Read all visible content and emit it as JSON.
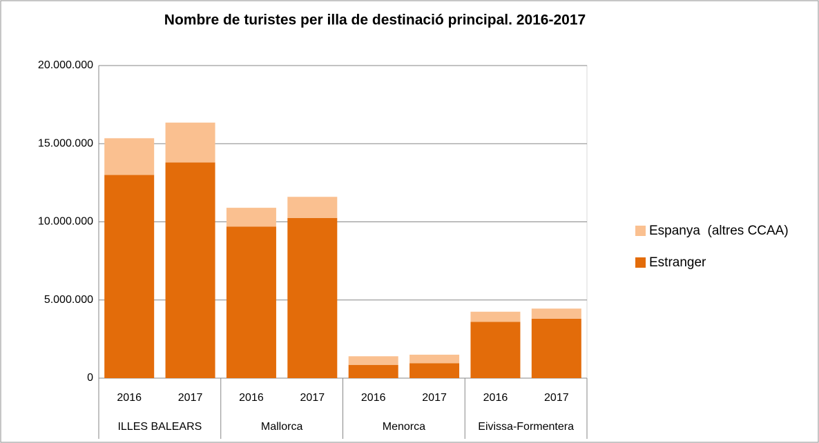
{
  "chart_data": {
    "type": "stacked-bar",
    "title": "Nombre de turistes per illa de destinació principal. 2016-2017",
    "categories": [
      "2016",
      "2017",
      "2016",
      "2017",
      "2016",
      "2017",
      "2016",
      "2017"
    ],
    "groups": [
      "ILLES BALEARS",
      "Mallorca",
      "Menorca",
      "Eivissa-Formentera"
    ],
    "series": [
      {
        "name": "Estranger",
        "color": "#e36c0a",
        "values": [
          13000000,
          13800000,
          9700000,
          10250000,
          850000,
          950000,
          3600000,
          3800000
        ]
      },
      {
        "name": "Espanya  (altres CCAA)",
        "color": "#fac090",
        "values": [
          2350000,
          2550000,
          1200000,
          1350000,
          550000,
          550000,
          650000,
          650000
        ]
      }
    ],
    "ylim": [
      0,
      20000000
    ],
    "yticks": [
      0,
      {
        "value": 5000000,
        "label": "5.000.000"
      },
      {
        "value": 10000000,
        "label": "10.000.000"
      },
      {
        "value": 15000000,
        "label": "15.000.000"
      },
      {
        "value": 20000000,
        "label": "20.000.000"
      }
    ],
    "grid": true,
    "legend": "right"
  }
}
